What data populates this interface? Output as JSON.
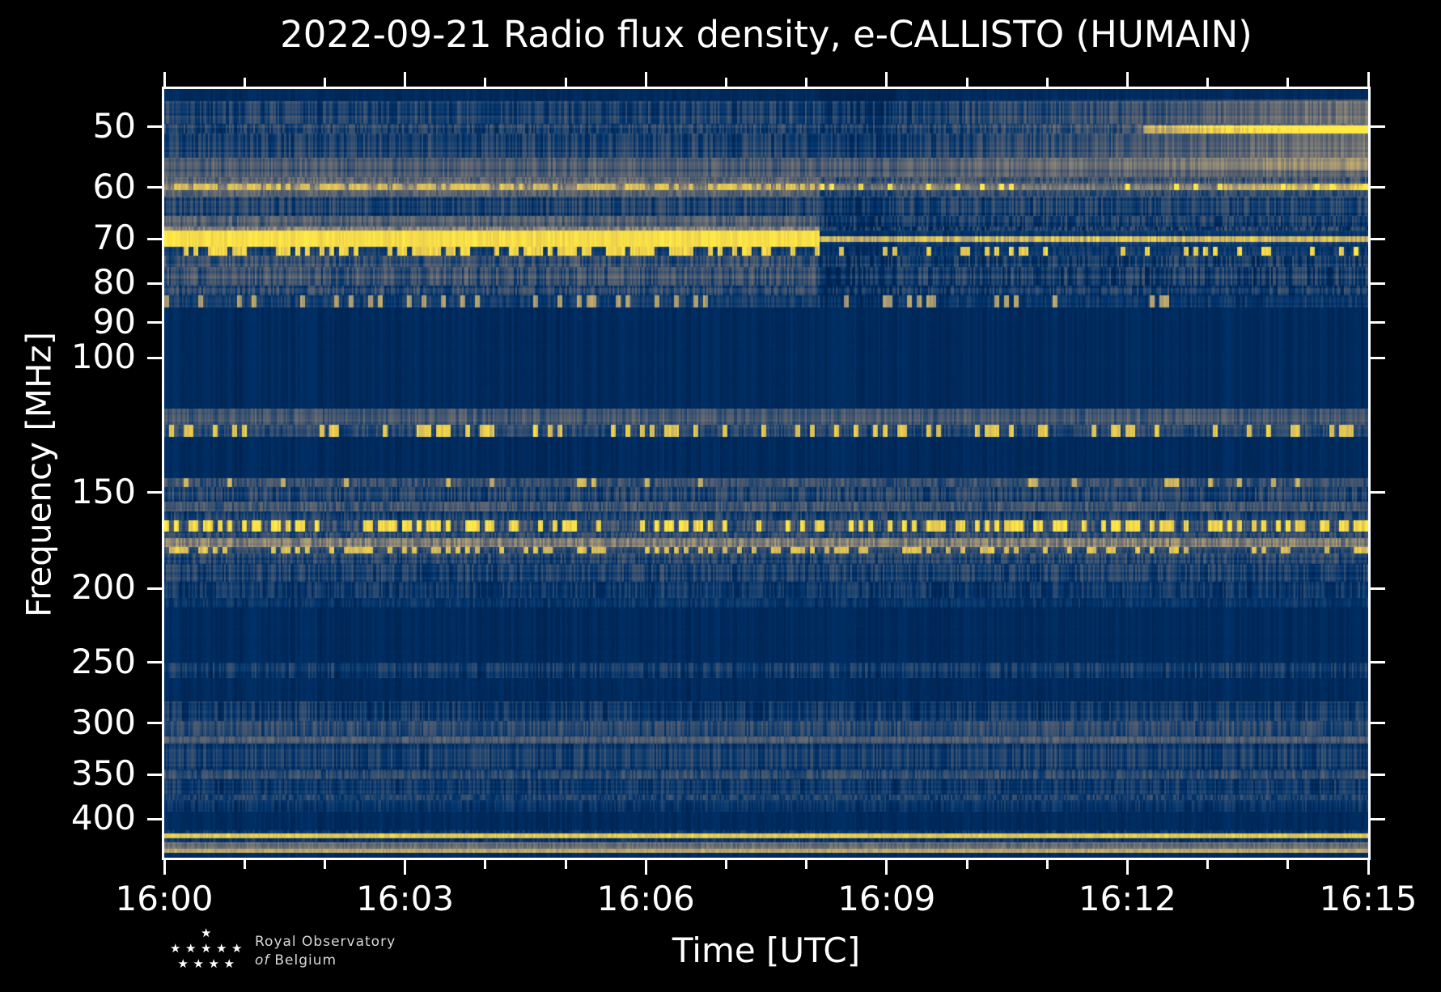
{
  "title": "2022-09-21 Radio flux density, e-CALLISTO (HUMAIN)",
  "logo": {
    "line1": "Royal Observatory",
    "line2_italic": "of",
    "line2_rest": "Belgium",
    "star_rows": [
      1,
      5,
      4
    ]
  },
  "chart_data": {
    "type": "heatmap",
    "subtype": "radio-spectrogram",
    "title": "2022-09-21 Radio flux density, e-CALLISTO (HUMAIN)",
    "xlabel": "Time [UTC]",
    "ylabel": "Frequency [MHz]",
    "x_ticks_major": [
      "16:00",
      "16:03",
      "16:06",
      "16:09",
      "16:12",
      "16:15"
    ],
    "x_tick_minutes": [
      0,
      3,
      6,
      9,
      12,
      15
    ],
    "x_minor_tick_every_min": 1,
    "x_range_min": [
      0,
      15
    ],
    "y_ticks": [
      50,
      60,
      70,
      80,
      90,
      100,
      150,
      200,
      250,
      300,
      350,
      400
    ],
    "y_range_mhz": [
      44.6,
      449.5
    ],
    "y_scale": "log",
    "grid": false,
    "legend": "none",
    "colormap": {
      "name": "cividis",
      "stops": [
        [
          0.0,
          0,
          34,
          78
        ],
        [
          0.1,
          0,
          52,
          110
        ],
        [
          0.2,
          39,
          72,
          111
        ],
        [
          0.3,
          72,
          88,
          111
        ],
        [
          0.4,
          98,
          104,
          112
        ],
        [
          0.5,
          123,
          122,
          119
        ],
        [
          0.6,
          149,
          140,
          119
        ],
        [
          0.7,
          176,
          159,
          112
        ],
        [
          0.8,
          204,
          180,
          99
        ],
        [
          0.9,
          233,
          202,
          77
        ],
        [
          1.0,
          255,
          234,
          70
        ]
      ]
    },
    "event": {
      "description": "Strong saturated emission band ~68-72 MHz from 16:00 that ends abruptly near 16:08:10, continuing afterwards as a thin bright line near 70 MHz",
      "t_end": 8.165,
      "band_f": [
        68.3,
        71.7
      ],
      "after_line_f": [
        69.4,
        70.7
      ]
    },
    "noise_seed": 42,
    "bands": [
      {
        "f": [
          44.6,
          46.3
        ],
        "base": 0.05,
        "noise": 0.015,
        "type": "flat"
      },
      {
        "f": [
          46.3,
          49.5
        ],
        "base": 0.17,
        "noise": 0.13,
        "type": "speckle"
      },
      {
        "f": [
          49.5,
          51.0
        ],
        "base": 0.2,
        "noise": 0.14,
        "type": "speckle"
      },
      {
        "f": [
          51.0,
          54.8
        ],
        "base": 0.16,
        "noise": 0.13,
        "type": "speckle"
      },
      {
        "f": [
          54.8,
          58.2
        ],
        "base": 0.3,
        "noise": 0.12,
        "base2": 0.34,
        "type": "speckle"
      },
      {
        "f": [
          58.2,
          59.3
        ],
        "base": 0.4,
        "noise": 0.14,
        "base2": 0.3,
        "type": "speckle"
      },
      {
        "f": [
          59.3,
          60.5
        ],
        "base": 0.55,
        "noise": 0.2,
        "base2": 0.35,
        "dash": 0.85,
        "density": 0.6,
        "density2": 0.15,
        "type": "dashes"
      },
      {
        "f": [
          60.5,
          61.6
        ],
        "base": 0.35,
        "noise": 0.12,
        "base2": 0.22,
        "type": "speckle"
      },
      {
        "f": [
          61.6,
          65.4
        ],
        "base": 0.17,
        "noise": 0.13,
        "type": "speckle"
      },
      {
        "f": [
          65.4,
          67.4
        ],
        "base": 0.32,
        "noise": 0.14,
        "base2": 0.14,
        "type": "speckle"
      },
      {
        "f": [
          67.4,
          68.3
        ],
        "base": 0.5,
        "noise": 0.18,
        "base2": 0.13,
        "type": "speckle"
      },
      {
        "f": [
          68.3,
          71.7
        ],
        "base": 0.965,
        "noise": 0.035,
        "type": "event"
      },
      {
        "f": [
          71.7,
          73.6
        ],
        "base": 0.14,
        "noise": 0.1,
        "base2": 0.12,
        "dash": 0.92,
        "density": 0.55,
        "density2": 0.32,
        "type": "dashes"
      },
      {
        "f": [
          73.6,
          76.2
        ],
        "base": 0.25,
        "noise": 0.15,
        "base2": 0.15,
        "type": "speckle"
      },
      {
        "f": [
          76.2,
          80.6
        ],
        "base": 0.28,
        "noise": 0.16,
        "base2": 0.16,
        "type": "speckle"
      },
      {
        "f": [
          80.6,
          83.0
        ],
        "base": 0.2,
        "noise": 0.14,
        "base2": 0.13,
        "type": "speckle"
      },
      {
        "f": [
          83.0,
          86.0
        ],
        "base": 0.15,
        "noise": 0.1,
        "base2": 0.12,
        "dash": 0.7,
        "density": 0.18,
        "density2": 0.1,
        "type": "dashes"
      },
      {
        "f": [
          86.0,
          116.5
        ],
        "base": 0.05,
        "noise": 0.015,
        "type": "flat"
      },
      {
        "f": [
          116.5,
          122.5
        ],
        "base": 0.3,
        "noise": 0.12,
        "type": "speckle"
      },
      {
        "f": [
          122.5,
          127.0
        ],
        "base": 0.2,
        "noise": 0.14,
        "dash": 0.88,
        "density": 0.3,
        "type": "dashes"
      },
      {
        "f": [
          127.0,
          143.5
        ],
        "base": 0.05,
        "noise": 0.015,
        "type": "flat"
      },
      {
        "f": [
          143.5,
          147.5
        ],
        "base": 0.24,
        "noise": 0.16,
        "dash": 0.8,
        "density": 0.08,
        "type": "dashes"
      },
      {
        "f": [
          147.5,
          154.0
        ],
        "base": 0.17,
        "noise": 0.14,
        "type": "speckle"
      },
      {
        "f": [
          154.0,
          158.8
        ],
        "base": 0.3,
        "noise": 0.14,
        "type": "speckle"
      },
      {
        "f": [
          158.8,
          163.0
        ],
        "base": 0.17,
        "noise": 0.12,
        "type": "speckle"
      },
      {
        "f": [
          163.0,
          168.8
        ],
        "base": 0.25,
        "noise": 0.18,
        "dash": 0.95,
        "density": 0.45,
        "type": "dashes"
      },
      {
        "f": [
          168.8,
          172.0
        ],
        "base": 0.2,
        "noise": 0.13,
        "type": "speckle"
      },
      {
        "f": [
          172.0,
          176.8
        ],
        "base": 0.52,
        "noise": 0.2,
        "type": "speckle"
      },
      {
        "f": [
          176.8,
          180.0
        ],
        "base": 0.22,
        "noise": 0.12,
        "dash": 0.85,
        "density": 0.35,
        "type": "dashes"
      },
      {
        "f": [
          180.0,
          186.0
        ],
        "base": 0.2,
        "noise": 0.13,
        "type": "speckle"
      },
      {
        "f": [
          186.0,
          196.0
        ],
        "base": 0.17,
        "noise": 0.13,
        "type": "speckle"
      },
      {
        "f": [
          196.0,
          206.0
        ],
        "base": 0.13,
        "noise": 0.11,
        "type": "speckle"
      },
      {
        "f": [
          206.0,
          212.0
        ],
        "base": 0.09,
        "noise": 0.07,
        "type": "speckle"
      },
      {
        "f": [
          212.0,
          250.0
        ],
        "base": 0.05,
        "noise": 0.02,
        "type": "flat"
      },
      {
        "f": [
          250.0,
          262.0
        ],
        "base": 0.13,
        "noise": 0.11,
        "type": "speckle"
      },
      {
        "f": [
          262.0,
          281.0
        ],
        "base": 0.05,
        "noise": 0.02,
        "type": "flat"
      },
      {
        "f": [
          281.0,
          298.0
        ],
        "base": 0.14,
        "noise": 0.12,
        "type": "speckle"
      },
      {
        "f": [
          298.0,
          312.0
        ],
        "base": 0.21,
        "noise": 0.12,
        "type": "speckle"
      },
      {
        "f": [
          312.0,
          319.0
        ],
        "base": 0.3,
        "noise": 0.1,
        "type": "speckle"
      },
      {
        "f": [
          319.0,
          345.0
        ],
        "base": 0.14,
        "noise": 0.12,
        "type": "speckle"
      },
      {
        "f": [
          345.0,
          355.0
        ],
        "base": 0.21,
        "noise": 0.12,
        "type": "speckle"
      },
      {
        "f": [
          355.0,
          372.0
        ],
        "base": 0.12,
        "noise": 0.1,
        "type": "speckle"
      },
      {
        "f": [
          372.0,
          378.0
        ],
        "base": 0.19,
        "noise": 0.12,
        "type": "speckle"
      },
      {
        "f": [
          378.0,
          391.0
        ],
        "base": 0.1,
        "noise": 0.08,
        "type": "speckle"
      },
      {
        "f": [
          391.0,
          414.0
        ],
        "base": 0.05,
        "noise": 0.02,
        "type": "flat"
      },
      {
        "f": [
          414.0,
          417.5
        ],
        "base": 0.12,
        "noise": 0.08,
        "type": "speckle"
      },
      {
        "f": [
          417.5,
          424.0
        ],
        "base": 0.88,
        "noise": 0.1,
        "type": "line"
      },
      {
        "f": [
          424.0,
          429.0
        ],
        "base": 0.12,
        "noise": 0.08,
        "type": "speckle"
      },
      {
        "f": [
          429.0,
          438.0
        ],
        "base": 0.42,
        "noise": 0.1,
        "type": "speckle"
      },
      {
        "f": [
          438.0,
          443.0
        ],
        "base": 0.75,
        "noise": 0.12,
        "type": "line"
      },
      {
        "f": [
          443.0,
          449.5
        ],
        "base": 0.05,
        "noise": 0.015,
        "type": "flat"
      }
    ],
    "features": [
      {
        "kind": "wash",
        "f": [
          46.0,
          57.0
        ],
        "t": [
          9.2,
          15.0
        ],
        "amp": 0.2
      },
      {
        "kind": "wash",
        "f": [
          46.0,
          57.0
        ],
        "t": [
          12.2,
          15.0
        ],
        "amp": 0.1
      },
      {
        "kind": "hline",
        "f": [
          49.7,
          51.0
        ],
        "t": [
          12.2,
          15.0
        ],
        "amp": 0.45,
        "ramp": 0.35
      },
      {
        "kind": "hline",
        "f": [
          59.3,
          60.4
        ],
        "t": [
          8.165,
          15.0
        ],
        "amp": 0.16,
        "ramp": 0.0
      },
      {
        "kind": "hline",
        "f": [
          59.3,
          60.4
        ],
        "t": [
          13.2,
          15.0
        ],
        "amp": 0.22,
        "ramp": 0.15
      },
      {
        "kind": "vshade",
        "f": [
          44.6,
          86.0
        ],
        "t": [
          8.165,
          9.1
        ],
        "amp": -0.05
      }
    ]
  }
}
